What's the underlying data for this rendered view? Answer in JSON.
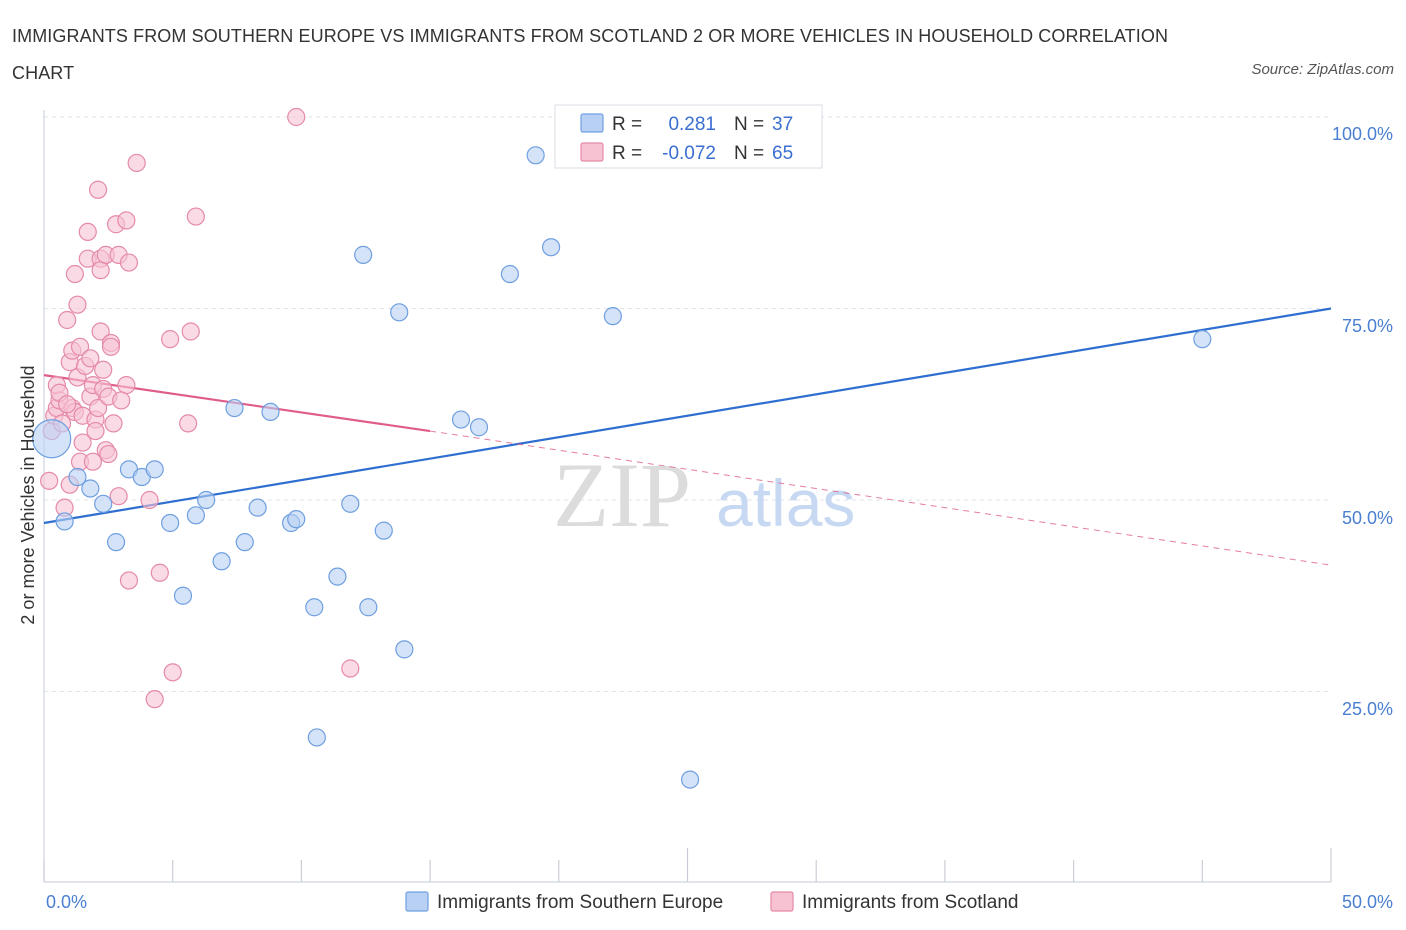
{
  "chart_data": {
    "type": "scatter",
    "title": "IMMIGRANTS FROM SOUTHERN EUROPE VS IMMIGRANTS FROM SCOTLAND 2 OR MORE VEHICLES IN HOUSEHOLD CORRELATION CHART",
    "source": "Source: ZipAtlas.com",
    "xlabel": "",
    "ylabel": "2 or more Vehicles in Household",
    "xlim": [
      0,
      50
    ],
    "ylim": [
      0,
      100
    ],
    "x_tick_labels": [
      "0.0%",
      "50.0%"
    ],
    "y_tick_labels": [
      "100.0%",
      "75.0%",
      "50.0%",
      "25.0%"
    ],
    "y_ticks": [
      100,
      75,
      50,
      25
    ],
    "watermark": {
      "zip": "ZIP",
      "atlas": "atlas"
    },
    "legend": {
      "r_label": "R =",
      "n_label": "N =",
      "entries": [
        {
          "r": "0.281",
          "n": "37"
        },
        {
          "r": "-0.072",
          "n": "65"
        }
      ]
    },
    "series": [
      {
        "name": "Immigrants from Southern Europe",
        "color": "#6f9fe0",
        "fill": "#b8d0f3",
        "line_color": "#2f6fd0",
        "trend": {
          "x0": 0,
          "y0": 47,
          "x1": 50,
          "y1": 75
        },
        "points": [
          [
            0.3,
            58
          ],
          [
            0.8,
            47.2
          ],
          [
            1.3,
            53
          ],
          [
            1.8,
            51.5
          ],
          [
            2.3,
            49.5
          ],
          [
            2.8,
            44.5
          ],
          [
            3.3,
            54
          ],
          [
            3.8,
            53
          ],
          [
            4.3,
            54
          ],
          [
            4.9,
            47
          ],
          [
            5.4,
            37.5
          ],
          [
            5.9,
            48
          ],
          [
            6.3,
            50
          ],
          [
            6.9,
            42
          ],
          [
            7.4,
            62
          ],
          [
            7.8,
            44.5
          ],
          [
            8.3,
            49
          ],
          [
            8.8,
            61.5
          ],
          [
            9.6,
            47
          ],
          [
            9.8,
            47.5
          ],
          [
            10.5,
            36
          ],
          [
            10.6,
            19
          ],
          [
            11.4,
            40
          ],
          [
            11.9,
            49.5
          ],
          [
            12.4,
            82
          ],
          [
            12.6,
            36
          ],
          [
            13.2,
            46
          ],
          [
            13.8,
            74.5
          ],
          [
            14.0,
            30.5
          ],
          [
            16.2,
            60.5
          ],
          [
            16.9,
            59.5
          ],
          [
            18.1,
            79.5
          ],
          [
            19.1,
            95
          ],
          [
            19.7,
            83
          ],
          [
            22.1,
            74
          ],
          [
            25.1,
            13.5
          ],
          [
            45.0,
            71
          ]
        ],
        "big_point": [
          0.3,
          58
        ]
      },
      {
        "name": "Immigrants from Scotland",
        "color": "#e58aa8",
        "fill": "#f7c3d3",
        "line_color": "#e05c8a",
        "trend": {
          "x0": 0,
          "y0": 66.3,
          "x1": 15,
          "y1": 59,
          "dash_x1": 50,
          "dash_y1": 41.5
        },
        "points": [
          [
            0.2,
            52.5
          ],
          [
            0.3,
            59
          ],
          [
            0.4,
            61
          ],
          [
            0.5,
            62
          ],
          [
            0.5,
            65
          ],
          [
            0.6,
            63
          ],
          [
            0.7,
            60
          ],
          [
            0.8,
            49
          ],
          [
            0.9,
            73.5
          ],
          [
            1.0,
            52
          ],
          [
            1.0,
            68
          ],
          [
            1.1,
            62
          ],
          [
            1.1,
            69.5
          ],
          [
            1.2,
            79.5
          ],
          [
            1.2,
            61.5
          ],
          [
            1.3,
            66
          ],
          [
            1.3,
            75.5
          ],
          [
            1.4,
            55
          ],
          [
            1.4,
            70
          ],
          [
            1.5,
            61
          ],
          [
            1.6,
            67.5
          ],
          [
            1.7,
            81.5
          ],
          [
            1.7,
            85
          ],
          [
            1.8,
            63.5
          ],
          [
            1.9,
            65
          ],
          [
            1.9,
            55
          ],
          [
            2.0,
            60.5
          ],
          [
            2.1,
            62
          ],
          [
            2.1,
            90.5
          ],
          [
            2.2,
            81.5
          ],
          [
            2.2,
            80
          ],
          [
            2.2,
            72
          ],
          [
            2.3,
            64.5
          ],
          [
            2.3,
            67
          ],
          [
            2.4,
            82
          ],
          [
            2.4,
            56.5
          ],
          [
            2.5,
            56
          ],
          [
            2.5,
            63.5
          ],
          [
            2.6,
            70.5
          ],
          [
            2.6,
            70
          ],
          [
            2.7,
            60
          ],
          [
            2.8,
            86
          ],
          [
            2.9,
            82
          ],
          [
            2.9,
            50.5
          ],
          [
            3.2,
            86.5
          ],
          [
            3.2,
            65
          ],
          [
            3.3,
            81
          ],
          [
            3.3,
            39.5
          ],
          [
            3.6,
            94
          ],
          [
            4.1,
            50
          ],
          [
            4.5,
            40.5
          ],
          [
            4.9,
            71
          ],
          [
            5.0,
            27.5
          ],
          [
            4.3,
            24
          ],
          [
            5.6,
            60
          ],
          [
            5.7,
            72
          ],
          [
            5.9,
            87
          ],
          [
            9.8,
            100
          ],
          [
            11.9,
            28
          ],
          [
            3.0,
            63
          ],
          [
            2.0,
            59
          ],
          [
            0.6,
            64
          ],
          [
            1.5,
            57.5
          ],
          [
            0.9,
            62.5
          ],
          [
            1.8,
            68.5
          ]
        ]
      }
    ]
  }
}
